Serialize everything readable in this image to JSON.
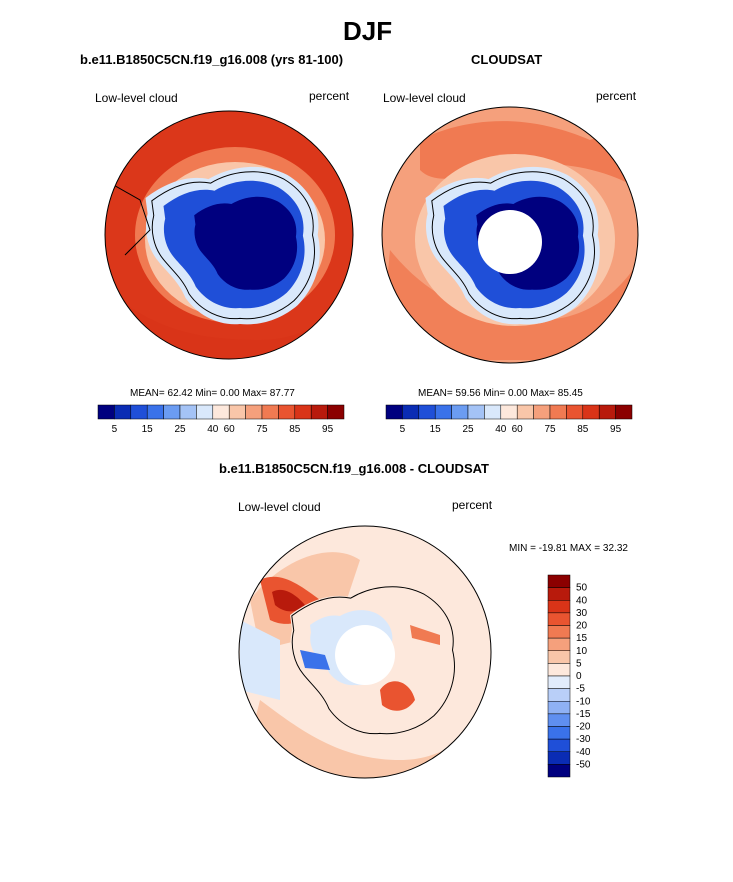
{
  "figure": {
    "title": "DJF",
    "panel1": {
      "title": "b.e11.B1850C5CN.f19_g16.008 (yrs 81-100)",
      "left": "Low-level cloud",
      "right": "percent",
      "stats": "MEAN=  62.42  Min=   0.00  Max=  87.77"
    },
    "panel2": {
      "title": "CLOUDSAT",
      "left": "Low-level cloud",
      "right": "percent",
      "stats": "MEAN=  59.56  Min=   0.00  Max=  85.45"
    },
    "panel3": {
      "title": "b.e11.B1850C5CN.f19_g16.008 - CLOUDSAT",
      "left": "Low-level cloud",
      "right": "percent",
      "stats": "MIN = -19.81 MAX =  32.32"
    }
  },
  "colorbars": {
    "abs_colors": [
      "#00007f",
      "#0a2cb4",
      "#1f4fd8",
      "#3a72ea",
      "#6b9cf2",
      "#a4c3f6",
      "#d9e8fb",
      "#fde8dc",
      "#f9c6a9",
      "#f5a07c",
      "#f07a52",
      "#e95430",
      "#d93418",
      "#b81a0c",
      "#8b0000"
    ],
    "abs_ticks": [
      "5",
      "15",
      "25",
      "40",
      "60",
      "75",
      "85",
      "95"
    ],
    "diff_colors": [
      "#00007f",
      "#0a2cb4",
      "#1f4fd8",
      "#3a72ea",
      "#5f8ff0",
      "#8fb1f4",
      "#b9cff8",
      "#e2ecfb",
      "#fde8dc",
      "#f9c6a9",
      "#f5a07c",
      "#f07a52",
      "#e95430",
      "#d93418",
      "#b81a0c",
      "#8b0000"
    ],
    "diff_ticks": [
      "50",
      "40",
      "30",
      "20",
      "15",
      "10",
      "5",
      "0",
      "-5",
      "-10",
      "-15",
      "-20",
      "-30",
      "-40",
      "-50"
    ]
  }
}
